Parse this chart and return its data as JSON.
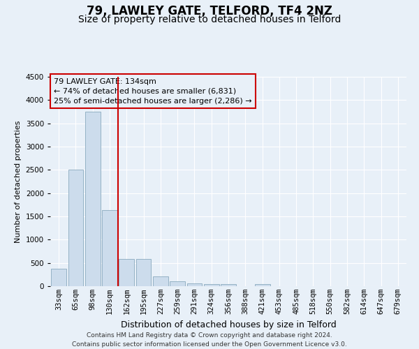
{
  "title": "79, LAWLEY GATE, TELFORD, TF4 2NZ",
  "subtitle": "Size of property relative to detached houses in Telford",
  "xlabel": "Distribution of detached houses by size in Telford",
  "ylabel": "Number of detached properties",
  "categories": [
    "33sqm",
    "65sqm",
    "98sqm",
    "130sqm",
    "162sqm",
    "195sqm",
    "227sqm",
    "259sqm",
    "291sqm",
    "324sqm",
    "356sqm",
    "388sqm",
    "421sqm",
    "453sqm",
    "485sqm",
    "518sqm",
    "550sqm",
    "582sqm",
    "614sqm",
    "647sqm",
    "679sqm"
  ],
  "values": [
    370,
    2500,
    3750,
    1640,
    590,
    590,
    210,
    105,
    60,
    40,
    40,
    0,
    45,
    0,
    0,
    0,
    0,
    0,
    0,
    0,
    0
  ],
  "bar_color": "#ccdcec",
  "bar_edge_color": "#8aaabe",
  "background_color": "#e8f0f8",
  "grid_color": "#ffffff",
  "annotation_line1": "79 LAWLEY GATE: 134sqm",
  "annotation_line2": "← 74% of detached houses are smaller (6,831)",
  "annotation_line3": "25% of semi-detached houses are larger (2,286) →",
  "annotation_box_color": "#cc0000",
  "ylim": [
    0,
    4500
  ],
  "yticks": [
    0,
    500,
    1000,
    1500,
    2000,
    2500,
    3000,
    3500,
    4000,
    4500
  ],
  "property_line_index": 3,
  "footer": "Contains HM Land Registry data © Crown copyright and database right 2024.\nContains public sector information licensed under the Open Government Licence v3.0.",
  "title_fontsize": 12,
  "subtitle_fontsize": 10,
  "xlabel_fontsize": 9,
  "ylabel_fontsize": 8,
  "tick_fontsize": 7.5,
  "annotation_fontsize": 8,
  "footer_fontsize": 6.5
}
